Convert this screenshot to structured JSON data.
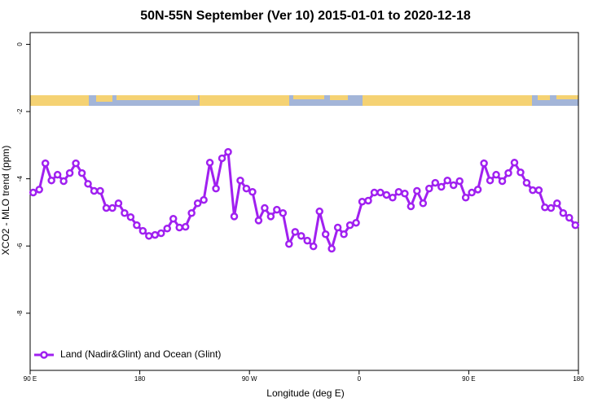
{
  "chart_data": {
    "type": "line",
    "title": "50N-55N September (Ver 10)   2015-01-01 to 2020-12-18",
    "x_label": "Longitude (deg E)",
    "y_label": "XCO2 - MLO trend (ppm)",
    "xlim": [
      90,
      540
    ],
    "xticks": [
      {
        "value": 90,
        "label": "90 E"
      },
      {
        "value": 180,
        "label": "180"
      },
      {
        "value": 270,
        "label": "90 W"
      },
      {
        "value": 360,
        "label": "0"
      },
      {
        "value": 450,
        "label": "90 E"
      },
      {
        "value": 540,
        "label": "180"
      }
    ],
    "ylim": [
      -9.7,
      0.35
    ],
    "yticks": [
      0,
      -2,
      -4,
      -6,
      -8
    ],
    "legend": "bottom-left",
    "x": [
      92.5,
      97.5,
      102.5,
      107.5,
      112.5,
      117.5,
      122.5,
      127.5,
      132.5,
      137.5,
      142.5,
      147.5,
      152.5,
      157.5,
      162.5,
      167.5,
      172.5,
      177.5,
      182.5,
      187.5,
      192.5,
      197.5,
      202.5,
      207.5,
      212.5,
      217.5,
      222.5,
      227.5,
      232.5,
      237.5,
      242.5,
      247.5,
      252.5,
      257.5,
      262.5,
      267.5,
      272.5,
      277.5,
      282.5,
      287.5,
      292.5,
      297.5,
      302.5,
      307.5,
      312.5,
      317.5,
      322.5,
      327.5,
      332.5,
      337.5,
      342.5,
      347.5,
      352.5,
      357.5,
      362.5,
      367.5,
      372.5,
      377.5,
      382.5,
      387.5,
      392.5,
      397.5,
      402.5,
      407.5,
      412.5,
      417.5,
      422.5,
      427.5,
      432.5,
      437.5,
      442.5,
      447.5,
      452.5,
      457.5,
      462.5,
      467.5,
      472.5,
      477.5,
      482.5,
      487.5,
      492.5,
      497.5,
      502.5,
      507.5,
      512.5,
      517.5,
      522.5,
      527.5,
      532.5,
      537.5
    ],
    "series": [
      {
        "name": "Land (Nadir&Glint) and Ocean (Glint)",
        "color": "#a020f0",
        "values": [
          -4.41,
          -4.32,
          -3.54,
          -4.05,
          -3.88,
          -4.07,
          -3.83,
          -3.54,
          -3.83,
          -4.15,
          -4.36,
          -4.36,
          -4.87,
          -4.87,
          -4.73,
          -5.02,
          -5.14,
          -5.38,
          -5.55,
          -5.7,
          -5.67,
          -5.62,
          -5.48,
          -5.19,
          -5.45,
          -5.43,
          -5.02,
          -4.73,
          -4.63,
          -3.52,
          -4.29,
          -3.39,
          -3.2,
          -5.12,
          -4.05,
          -4.29,
          -4.39,
          -5.24,
          -4.87,
          -5.12,
          -4.92,
          -5.02,
          -5.94,
          -5.58,
          -5.7,
          -5.84,
          -6.01,
          -4.97,
          -5.65,
          -6.08,
          -5.45,
          -5.65,
          -5.38,
          -5.31,
          -4.68,
          -4.65,
          -4.41,
          -4.41,
          -4.48,
          -4.56,
          -4.39,
          -4.44,
          -4.82,
          -4.36,
          -4.73,
          -4.29,
          -4.12,
          -4.24,
          -4.05,
          -4.19,
          -4.07,
          -4.56,
          -4.41,
          -4.32,
          -3.54,
          -4.05,
          -3.88,
          -4.07,
          -3.83,
          -3.52,
          -3.81,
          -4.12,
          -4.34,
          -4.34,
          -4.85,
          -4.87,
          -4.73,
          -5.02,
          -5.16,
          -5.38
        ]
      }
    ]
  }
}
